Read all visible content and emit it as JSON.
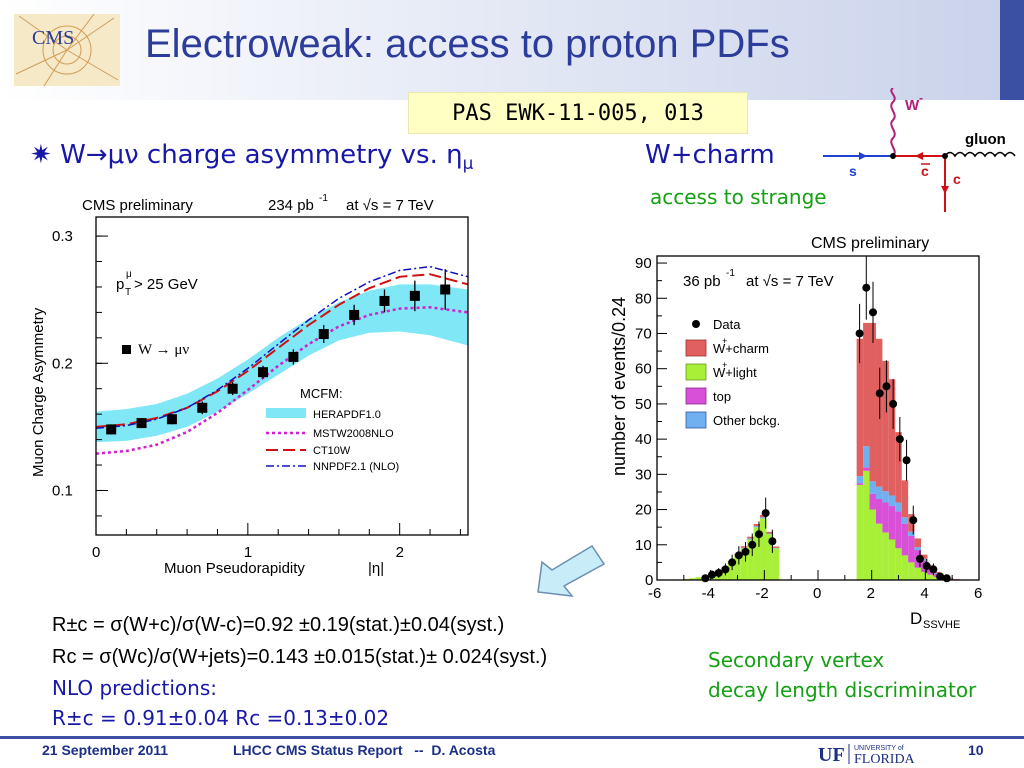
{
  "header": {
    "title": "Electroweak: access to proton PDFs",
    "logo_text": "CMS",
    "reference": "PAS EWK-11-005, 013"
  },
  "bullet": {
    "symbol": "✷",
    "text_pre": "W",
    "arrow": "→",
    "text_mid": "μν charge asymmetry vs. η",
    "sub": "μ"
  },
  "wcharm": {
    "heading": "W+charm",
    "subheading": "access to strange"
  },
  "feynman": {
    "w_label": "W",
    "w_sup": "-",
    "gluon_label": "gluon",
    "s_label": "s",
    "cbar_label": "c",
    "c_label": "c"
  },
  "colors": {
    "title": "#2b3c9a",
    "blue_text": "#1818a8",
    "green_text": "#14a014",
    "footer": "#1b2f86",
    "herapdf_band": "#7fe7f5",
    "mstw": "#d020d0",
    "ct10": "#d01010",
    "nnpdf": "#1010c0",
    "wcharm_fill": "#e06060",
    "wlight_fill": "#a8ef38",
    "top_fill": "#d84fd8",
    "other_fill": "#70b0f0"
  },
  "chart_data": [
    {
      "type": "line",
      "title": "CMS preliminary",
      "lumi_text": "234 pb",
      "lumi_sup": "-1",
      "energy_text": "at √s = 7 TeV",
      "xlabel": "Muon Pseudorapidity",
      "xlabel_suffix": "|η|",
      "ylabel": "Muon Charge Asymmetry",
      "xlim": [
        0,
        2.45
      ],
      "ylim": [
        0.065,
        0.315
      ],
      "xticks": [
        "0",
        "1",
        "2"
      ],
      "yticks": [
        "0.1",
        "0.2",
        "0.3"
      ],
      "cut_label": "p",
      "cut_sub": "T",
      "cut_sup": "μ",
      "cut_value": " > 25 GeV",
      "data_legend": "W → μν",
      "model_header": "MCFM:",
      "data": {
        "x": [
          0.1,
          0.3,
          0.5,
          0.7,
          0.9,
          1.1,
          1.3,
          1.5,
          1.7,
          1.9,
          2.1,
          2.3
        ],
        "y": [
          0.148,
          0.153,
          0.156,
          0.165,
          0.18,
          0.193,
          0.205,
          0.223,
          0.238,
          0.249,
          0.253,
          0.258
        ],
        "err": [
          0.004,
          0.004,
          0.004,
          0.005,
          0.005,
          0.005,
          0.006,
          0.007,
          0.008,
          0.009,
          0.012,
          0.016
        ]
      },
      "series": [
        {
          "name": "HERAPDF1.0",
          "style": "band",
          "x": [
            0,
            0.2,
            0.4,
            0.6,
            0.8,
            1.0,
            1.2,
            1.4,
            1.6,
            1.8,
            2.0,
            2.2,
            2.45
          ],
          "lo": [
            0.138,
            0.139,
            0.143,
            0.15,
            0.162,
            0.176,
            0.191,
            0.206,
            0.218,
            0.224,
            0.225,
            0.222,
            0.214
          ],
          "hi": [
            0.162,
            0.164,
            0.168,
            0.176,
            0.188,
            0.203,
            0.22,
            0.235,
            0.248,
            0.257,
            0.262,
            0.262,
            0.258
          ]
        },
        {
          "name": "MSTW2008NLO",
          "style": "dotted",
          "x": [
            0,
            0.2,
            0.4,
            0.6,
            0.8,
            1.0,
            1.2,
            1.4,
            1.6,
            1.8,
            2.0,
            2.2,
            2.45
          ],
          "y": [
            0.129,
            0.131,
            0.136,
            0.146,
            0.161,
            0.179,
            0.198,
            0.215,
            0.229,
            0.238,
            0.243,
            0.244,
            0.24
          ]
        },
        {
          "name": "CT10W",
          "style": "dashed",
          "x": [
            0,
            0.2,
            0.4,
            0.6,
            0.8,
            1.0,
            1.2,
            1.4,
            1.6,
            1.8,
            2.0,
            2.2,
            2.45
          ],
          "y": [
            0.15,
            0.152,
            0.157,
            0.165,
            0.178,
            0.194,
            0.212,
            0.23,
            0.246,
            0.259,
            0.268,
            0.27,
            0.262
          ]
        },
        {
          "name": "NNPDF2.1 (NLO)",
          "style": "dashdot",
          "x": [
            0,
            0.2,
            0.4,
            0.6,
            0.8,
            1.0,
            1.2,
            1.4,
            1.6,
            1.8,
            2.0,
            2.2,
            2.45
          ],
          "y": [
            0.149,
            0.151,
            0.156,
            0.165,
            0.179,
            0.196,
            0.215,
            0.234,
            0.251,
            0.264,
            0.273,
            0.276,
            0.268
          ]
        }
      ]
    },
    {
      "type": "bar",
      "title": "CMS preliminary",
      "lumi_text": "36 pb",
      "lumi_sup": "-1",
      "energy_text": "at √s = 7 TeV",
      "xlabel": "D",
      "xlabel_sub": "SSVHE",
      "ylabel": "number of events/0.24",
      "xlim": [
        -6,
        6
      ],
      "ylim": [
        0,
        92
      ],
      "xticks": [
        "-6",
        "-4",
        "-2",
        "0",
        "2",
        "4",
        "6"
      ],
      "yticks": [
        "0",
        "10",
        "20",
        "30",
        "40",
        "50",
        "60",
        "70",
        "80",
        "90"
      ],
      "bin_width": 0.24,
      "legend": [
        "Data",
        "W+charm",
        "W+light",
        "top",
        "Other bckg."
      ],
      "legend_sup": "+",
      "bins_low_edge": [
        -5.04,
        -4.8,
        -4.56,
        -4.32,
        -4.08,
        -3.84,
        -3.6,
        -3.36,
        -3.12,
        -2.88,
        -2.64,
        -2.4,
        -2.16,
        -1.92,
        -1.68,
        -1.44,
        0.96,
        1.2,
        1.44,
        1.68,
        1.92,
        2.16,
        2.4,
        2.64,
        2.88,
        3.12,
        3.36,
        3.6,
        3.84,
        4.08,
        4.32,
        4.56,
        4.8,
        5.04,
        5.28
      ],
      "stack": {
        "W+light": [
          0.3,
          0.5,
          0.8,
          1.2,
          1.8,
          2.6,
          3.6,
          5.0,
          7.0,
          9.0,
          11.5,
          15.0,
          17.5,
          13.0,
          9.0,
          0,
          0,
          0,
          27.0,
          31.0,
          20.0,
          16.0,
          13.5,
          11.5,
          9.0,
          7.0,
          5.0,
          3.5,
          2.3,
          1.5,
          0.8,
          0.5,
          0.3,
          0.2,
          0
        ],
        "W+charm": [
          0,
          0,
          0,
          0,
          0,
          0.1,
          0.1,
          0.2,
          0.3,
          0.4,
          0.5,
          0.6,
          0.7,
          0.5,
          0.4,
          0,
          0,
          0,
          39.0,
          35.0,
          45.0,
          42.0,
          37.0,
          33.0,
          20.0,
          10.5,
          5.0,
          2.5,
          1.2,
          0.6,
          0.3,
          0.1,
          0.1,
          0,
          0
        ],
        "top": [
          0,
          0,
          0,
          0,
          0,
          0,
          0,
          0,
          0,
          0,
          0,
          0,
          0,
          0,
          0,
          0,
          0,
          0,
          0.5,
          1.0,
          4.5,
          7.0,
          8.5,
          9.5,
          10.5,
          9.0,
          7.5,
          5.0,
          3.2,
          1.8,
          1.0,
          0.5,
          0.2,
          0.1,
          0
        ],
        "Other bckg.": [
          0,
          0,
          0,
          0,
          0,
          0,
          0,
          0.1,
          0.1,
          0.2,
          0.3,
          0.3,
          0.3,
          0.2,
          0.1,
          0,
          0,
          0,
          2.0,
          6.0,
          3.5,
          3.5,
          3.2,
          3.0,
          2.5,
          1.8,
          1.2,
          0.8,
          0.5,
          0.3,
          0.2,
          0.1,
          0,
          0,
          0
        ]
      },
      "data": {
        "x": [
          -4.2,
          -3.95,
          -3.7,
          -3.45,
          -3.2,
          -2.95,
          -2.7,
          -2.45,
          -2.2,
          -1.95,
          -1.7,
          1.55,
          1.8,
          2.05,
          2.3,
          2.55,
          2.8,
          3.05,
          3.3,
          3.55,
          3.8,
          4.05,
          4.3,
          4.55,
          4.8
        ],
        "y": [
          0.5,
          1.5,
          2,
          3,
          5,
          7,
          8,
          10,
          13,
          19,
          11,
          70,
          83,
          76,
          53,
          55,
          50,
          40,
          34,
          17,
          6,
          4,
          3,
          1,
          0.5
        ],
        "err": [
          0.7,
          1.2,
          1.4,
          1.7,
          2.2,
          2.6,
          2.8,
          3.2,
          3.6,
          4.4,
          3.3,
          8.4,
          9.1,
          8.7,
          7.3,
          7.4,
          7.1,
          6.3,
          5.8,
          4.1,
          2.4,
          2.0,
          1.7,
          1.0,
          0.7
        ]
      }
    }
  ],
  "results": {
    "eq1": "R±c = σ(W+c)/σ(W-c)=0.92 ±0.19(stat.)±0.04(syst.)",
    "eq2": "Rc = σ(Wc)/σ(W+jets)=0.143 ±0.015(stat.)± 0.024(syst.)",
    "nlo_heading": "NLO predictions:",
    "nlo_values": "R±c = 0.91±0.04    Rc =0.13±0.02",
    "sv_line1": "Secondary vertex",
    "sv_line2": "decay length discriminator"
  },
  "footer": {
    "date": "21 September 2011",
    "report": "LHCC CMS Status Report   --  D. Acosta",
    "uf_text": "UF",
    "uf_small": "UNIVERSITY of",
    "uf_name": "FLORIDA",
    "page": "10"
  }
}
